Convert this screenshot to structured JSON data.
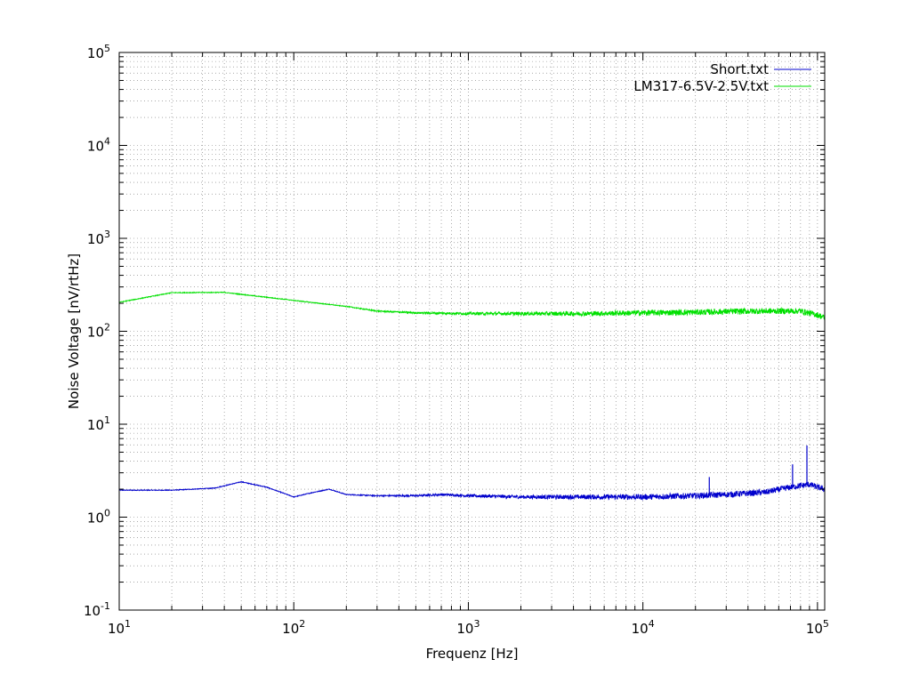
{
  "chart_data": {
    "type": "line",
    "title": "",
    "xlabel": "Frequenz [Hz]",
    "ylabel": "Noise Voltage [nV/rtHz]",
    "xscale": "log",
    "yscale": "log",
    "xlim": [
      10,
      110000
    ],
    "ylim": [
      0.1,
      100000
    ],
    "grid": true,
    "legend_position": "top-right",
    "x_ticks": [
      {
        "base": "10",
        "exp": "1",
        "value": 10
      },
      {
        "base": "10",
        "exp": "2",
        "value": 100
      },
      {
        "base": "10",
        "exp": "3",
        "value": 1000
      },
      {
        "base": "10",
        "exp": "4",
        "value": 10000
      },
      {
        "base": "10",
        "exp": "5",
        "value": 100000
      }
    ],
    "y_ticks": [
      {
        "base": "10",
        "exp": "-1",
        "value": 0.1
      },
      {
        "base": "10",
        "exp": "0",
        "value": 1
      },
      {
        "base": "10",
        "exp": "1",
        "value": 10
      },
      {
        "base": "10",
        "exp": "2",
        "value": 100
      },
      {
        "base": "10",
        "exp": "3",
        "value": 1000
      },
      {
        "base": "10",
        "exp": "4",
        "value": 10000
      },
      {
        "base": "10",
        "exp": "5",
        "value": 100000
      }
    ],
    "series": [
      {
        "name": "Short.txt",
        "color": "#0000cc",
        "x": [
          10,
          20,
          35,
          50,
          70,
          100,
          130,
          160,
          200,
          300,
          500,
          700,
          1000,
          2000,
          3000,
          5000,
          10000,
          20000,
          30000,
          50000,
          70000,
          90000,
          100000,
          110000
        ],
        "y": [
          1.95,
          1.95,
          2.05,
          2.4,
          2.1,
          1.65,
          1.85,
          2.0,
          1.75,
          1.7,
          1.7,
          1.75,
          1.7,
          1.65,
          1.65,
          1.65,
          1.65,
          1.7,
          1.75,
          1.85,
          2.1,
          2.25,
          2.1,
          2.0
        ],
        "spikes": [
          {
            "x": 24000,
            "y": 2.7
          },
          {
            "x": 72000,
            "y": 3.7
          },
          {
            "x": 87000,
            "y": 5.9
          }
        ]
      },
      {
        "name": "LM317-6.5V-2.5V.txt",
        "color": "#00e000",
        "x": [
          10,
          20,
          40,
          60,
          100,
          200,
          300,
          500,
          1000,
          2000,
          3000,
          5000,
          10000,
          20000,
          30000,
          50000,
          80000,
          100000,
          110000
        ],
        "y": [
          205,
          260,
          262,
          240,
          215,
          185,
          165,
          158,
          155,
          155,
          155,
          155,
          158,
          160,
          163,
          165,
          165,
          150,
          140
        ]
      }
    ]
  }
}
